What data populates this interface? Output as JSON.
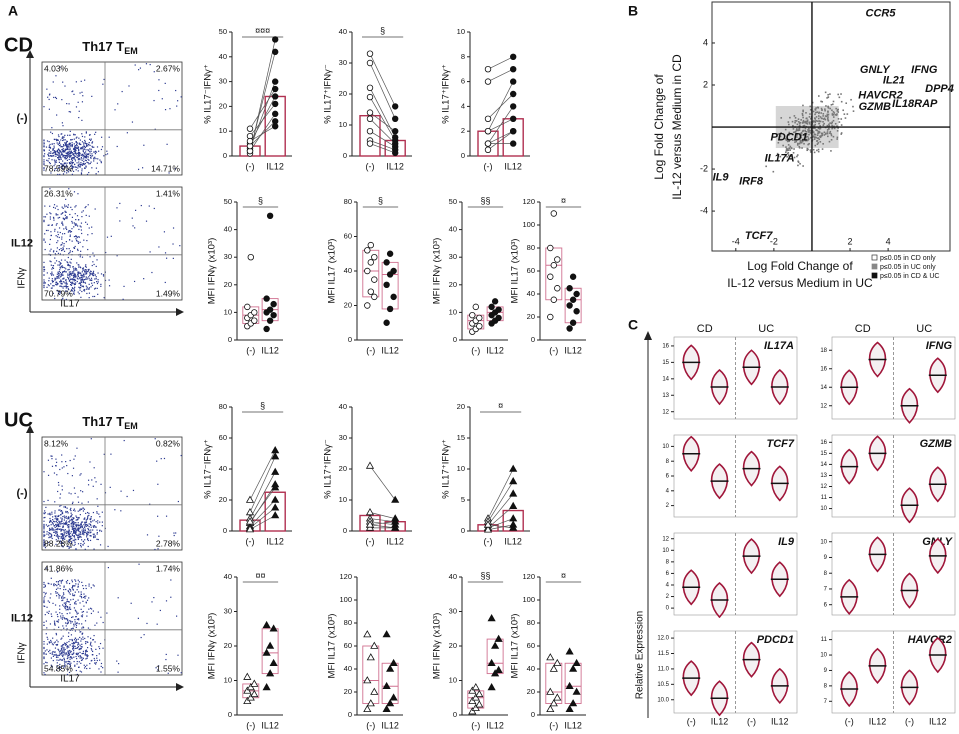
{
  "panel_a": {
    "label": "A",
    "groups": [
      "(-)",
      "IL12"
    ],
    "cohorts": [
      {
        "name": "CD",
        "marker": "circle",
        "flow_title": "Th17 T",
        "flow_title_sub": "EM",
        "y_axis": "IFNγ",
        "x_axis": "IL17",
        "flow": [
          {
            "label": "(-)",
            "quadrants": [
              "4.03%",
              "2.67%",
              "78.59%",
              "14.71%"
            ]
          },
          {
            "label": "IL12",
            "quadrants": [
              "26.31%",
              "1.41%",
              "70.79%",
              "1.49%"
            ]
          }
        ],
        "pairs": [
          {
            "ylabel": "% IL17⁻IFNγ⁺",
            "sig": "¤¤¤",
            "ylim": [
              0,
              50
            ],
            "yticks": [
              0,
              10,
              20,
              30,
              40,
              50
            ],
            "bars": [
              4,
              24
            ],
            "values": [
              [
                1,
                47
              ],
              [
                2,
                42
              ],
              [
                3,
                30
              ],
              [
                5,
                24
              ],
              [
                8,
                21
              ],
              [
                2,
                17
              ],
              [
                4,
                14
              ],
              [
                6,
                12
              ],
              [
                11,
                27
              ]
            ]
          },
          {
            "ylabel": "% IL17⁺IFNγ⁻",
            "sig": "§",
            "ylim": [
              0,
              40
            ],
            "yticks": [
              0,
              10,
              20,
              30,
              40
            ],
            "bars": [
              13,
              5
            ],
            "values": [
              [
                33,
                16
              ],
              [
                30,
                12
              ],
              [
                22,
                6
              ],
              [
                19,
                5
              ],
              [
                12,
                4
              ],
              [
                8,
                3
              ],
              [
                5,
                2
              ],
              [
                4,
                1
              ],
              [
                14,
                8
              ]
            ]
          },
          {
            "ylabel": "% IL17⁺IFNγ⁺",
            "ylim": [
              0,
              10
            ],
            "yticks": [
              0,
              2,
              4,
              6,
              8,
              10
            ],
            "bars": [
              2,
              3
            ],
            "values": [
              [
                7,
                8
              ],
              [
                6,
                7
              ],
              [
                3,
                5
              ],
              [
                2,
                3
              ],
              [
                1,
                2
              ],
              [
                1,
                1
              ],
              [
                0.5,
                2
              ],
              [
                1,
                4
              ],
              [
                2,
                6
              ]
            ]
          }
        ],
        "boxes": [
          {
            "ylabel": "MFI IFNγ (x10³)",
            "sig": "§",
            "ylim": [
              0,
              50
            ],
            "yticks": [
              0,
              10,
              20,
              30,
              40,
              50
            ],
            "values": [
              [
                5,
                6,
                7,
                8,
                9,
                10,
                12,
                30
              ],
              [
                4,
                7,
                9,
                10,
                11,
                13,
                15,
                45
              ]
            ]
          },
          {
            "ylabel": "MFI IL17 (x10³)",
            "sig": "§",
            "ylim": [
              0,
              80
            ],
            "yticks": [
              0,
              20,
              40,
              60,
              80
            ],
            "values": [
              [
                20,
                28,
                35,
                40,
                45,
                48,
                52,
                55,
                25
              ],
              [
                10,
                18,
                25,
                32,
                38,
                40,
                45,
                50
              ]
            ]
          },
          {
            "ylabel": "MFI IFNγ (x10³)",
            "sig": "§§",
            "ylim": [
              0,
              50
            ],
            "yticks": [
              0,
              10,
              20,
              30,
              40,
              50
            ],
            "values": [
              [
                3,
                4,
                5,
                6,
                7,
                8,
                9,
                12
              ],
              [
                6,
                7,
                8,
                9,
                10,
                11,
                12,
                14
              ]
            ]
          },
          {
            "ylabel": "MFI IL17 (x10³)",
            "sig": "¤",
            "ylim": [
              0,
              120
            ],
            "yticks": [
              0,
              20,
              40,
              60,
              80,
              100,
              120
            ],
            "values": [
              [
                20,
                35,
                45,
                55,
                65,
                70,
                80,
                110
              ],
              [
                10,
                15,
                25,
                30,
                35,
                40,
                45,
                55
              ]
            ]
          }
        ]
      },
      {
        "name": "UC",
        "marker": "triangle",
        "flow_title": "Th17 T",
        "flow_title_sub": "EM",
        "y_axis": "IFNγ",
        "x_axis": "IL17",
        "flow": [
          {
            "label": "(-)",
            "quadrants": [
              "8.12%",
              "0.82%",
              "88.28%",
              "2.78%"
            ]
          },
          {
            "label": "IL12",
            "quadrants": [
              "41.86%",
              "1.74%",
              "54.85%",
              "1.55%"
            ]
          }
        ],
        "pairs": [
          {
            "ylabel": "% IL17⁻IFNγ⁺",
            "sig": "§",
            "ylim": [
              0,
              80
            ],
            "yticks": [
              0,
              20,
              40,
              60,
              80
            ],
            "bars": [
              7,
              25
            ],
            "values": [
              [
                20,
                52
              ],
              [
                12,
                48
              ],
              [
                8,
                38
              ],
              [
                5,
                30
              ],
              [
                3,
                20
              ],
              [
                2,
                15
              ],
              [
                1,
                10
              ],
              [
                6,
                28
              ]
            ]
          },
          {
            "ylabel": "% IL17⁺IFNγ⁻",
            "ylim": [
              0,
              40
            ],
            "yticks": [
              0,
              10,
              20,
              30,
              40
            ],
            "bars": [
              5,
              3
            ],
            "values": [
              [
                21,
                10
              ],
              [
                6,
                4
              ],
              [
                4,
                3
              ],
              [
                3,
                2
              ],
              [
                2,
                1
              ],
              [
                1,
                1
              ],
              [
                2,
                3
              ]
            ]
          },
          {
            "ylabel": "% IL17⁺IFNγ⁺",
            "sig": "¤",
            "ylim": [
              0,
              20
            ],
            "yticks": [
              0,
              5,
              10,
              15,
              20
            ],
            "bars": [
              1,
              3.3
            ],
            "values": [
              [
                2,
                10
              ],
              [
                1.5,
                8
              ],
              [
                1,
                6
              ],
              [
                0.5,
                4
              ],
              [
                0.5,
                2
              ],
              [
                0.2,
                1
              ],
              [
                1,
                0.5
              ]
            ]
          }
        ],
        "boxes": [
          {
            "ylabel": "MFI IFNγ (x10³)",
            "sig": "¤¤",
            "ylim": [
              0,
              40
            ],
            "yticks": [
              0,
              10,
              20,
              30,
              40
            ],
            "values": [
              [
                4,
                5,
                6,
                7,
                8,
                9,
                11
              ],
              [
                8,
                12,
                15,
                18,
                20,
                25,
                26
              ]
            ]
          },
          {
            "ylabel": "MFI IL17 (x10³)",
            "ylim": [
              0,
              120
            ],
            "yticks": [
              0,
              20,
              40,
              60,
              80,
              100,
              120
            ],
            "values": [
              [
                5,
                10,
                20,
                30,
                50,
                60,
                70
              ],
              [
                5,
                10,
                15,
                25,
                40,
                45,
                70
              ]
            ]
          },
          {
            "ylabel": "MFI IFNγ (x10³)",
            "sig": "§§",
            "ylim": [
              0,
              40
            ],
            "yticks": [
              0,
              10,
              20,
              30,
              40
            ],
            "values": [
              [
                1,
                2,
                3,
                4,
                5,
                6,
                7,
                8
              ],
              [
                8,
                12,
                13,
                15,
                20,
                22,
                28
              ]
            ]
          },
          {
            "ylabel": "MFI IL17 (x10³)",
            "sig": "¤",
            "ylim": [
              0,
              120
            ],
            "yticks": [
              0,
              20,
              40,
              60,
              80,
              100,
              120
            ],
            "values": [
              [
                5,
                10,
                15,
                20,
                40,
                45,
                50
              ],
              [
                5,
                10,
                20,
                25,
                40,
                45,
                55
              ]
            ]
          }
        ]
      }
    ]
  },
  "panel_b": {
    "label": "B",
    "xlabel": [
      "Log Fold Change of",
      "IL-12 versus Medium in UC"
    ],
    "ylabel": [
      "Log Fold Change of",
      "IL-12 versus Medium in CD"
    ],
    "xlim": [
      -5.25,
      7.25
    ],
    "ylim": [
      -5.9,
      5.95
    ],
    "xticks": [
      -4,
      -2,
      2,
      4
    ],
    "yticks": [
      -4,
      -2,
      2,
      4
    ],
    "genes": [
      {
        "label": "CCR5",
        "x": 3.6,
        "y": 5.4,
        "color": "#000000"
      },
      {
        "label": "GNLY",
        "x": 3.3,
        "y": 2.7,
        "color": "#000000"
      },
      {
        "label": "IFNG",
        "x": 5.9,
        "y": 2.7,
        "color": "#000000"
      },
      {
        "label": "IL21",
        "x": 4.3,
        "y": 2.2,
        "color": "#000000"
      },
      {
        "label": "DPP4",
        "x": 6.7,
        "y": 1.8,
        "color": "#000000"
      },
      {
        "label": "HAVCR2",
        "x": 3.6,
        "y": 1.5,
        "color": "#000000"
      },
      {
        "label": "IL18RAP",
        "x": 5.4,
        "y": 1.1,
        "color": "#000000"
      },
      {
        "label": "GZMB",
        "x": 3.3,
        "y": 0.95,
        "color": "#000000"
      },
      {
        "label": "PDCD1",
        "x": -1.2,
        "y": -0.5,
        "color": "#8c8c8c"
      },
      {
        "label": "IL17A",
        "x": -1.7,
        "y": -1.5,
        "color": "#000000"
      },
      {
        "label": "IL9",
        "x": -4.8,
        "y": -2.4,
        "color": "#8c8c8c"
      },
      {
        "label": "IRF8",
        "x": -3.2,
        "y": -2.6,
        "color": "#000000"
      },
      {
        "label": "TCF7",
        "x": -2.8,
        "y": -5.2,
        "color": "#000000"
      }
    ],
    "legend": [
      "p≤0.05 in CD only",
      "p≤0.05 in UC only",
      "p≤0.05 in CD & UC"
    ]
  },
  "panel_c": {
    "label": "C",
    "groups": [
      "CD",
      "UC"
    ],
    "conditions": [
      "(-)",
      "IL12"
    ],
    "ylabel": "Relative Expression",
    "color": "#a0163a",
    "genes": [
      {
        "name": "IL17A",
        "ylim": [
          11.8,
          16.3
        ],
        "yticks": [
          12,
          13,
          14,
          15,
          16
        ],
        "means": [
          15,
          13.5,
          14.7,
          13.5
        ]
      },
      {
        "name": "IFNG",
        "ylim": [
          11,
          19
        ],
        "yticks": [
          12,
          14,
          16,
          18
        ],
        "means": [
          14,
          17,
          12,
          15.3
        ]
      },
      {
        "name": "TCF7",
        "ylim": [
          1,
          11
        ],
        "yticks": [
          2,
          4,
          6,
          8,
          10
        ],
        "means": [
          9,
          5.3,
          7,
          5
        ]
      },
      {
        "name": "GZMB",
        "ylim": [
          9.6,
          16.3
        ],
        "yticks": [
          10,
          11,
          12,
          13,
          14,
          15,
          16
        ],
        "means": [
          13.8,
          15,
          10.3,
          12.2
        ]
      },
      {
        "name": "IL9",
        "ylim": [
          -0.5,
          12.3
        ],
        "yticks": [
          0,
          2,
          4,
          6,
          8,
          10,
          12
        ],
        "means": [
          3.6,
          1.4,
          9,
          5
        ]
      },
      {
        "name": "GNLY",
        "ylim": [
          5.6,
          10.3
        ],
        "yticks": [
          6,
          7,
          8,
          9,
          10
        ],
        "means": [
          6.5,
          9.2,
          6.9,
          9.1
        ]
      },
      {
        "name": "PDCD1",
        "ylim": [
          9.7,
          12.1
        ],
        "yticks": [
          {
            "value": 10,
            "label": "10.0"
          },
          10.5,
          {
            "value": 11,
            "label": "11.0"
          },
          11.5,
          {
            "value": 12,
            "label": "12.0"
          }
        ],
        "means": [
          10.7,
          10.05,
          11.3,
          10.45
        ]
      },
      {
        "name": "HAVCR2",
        "ylim": [
          6.5,
          11.3
        ],
        "yticks": [
          7,
          8,
          9,
          10,
          11
        ],
        "means": [
          7.8,
          9.3,
          7.9,
          10
        ]
      }
    ]
  }
}
